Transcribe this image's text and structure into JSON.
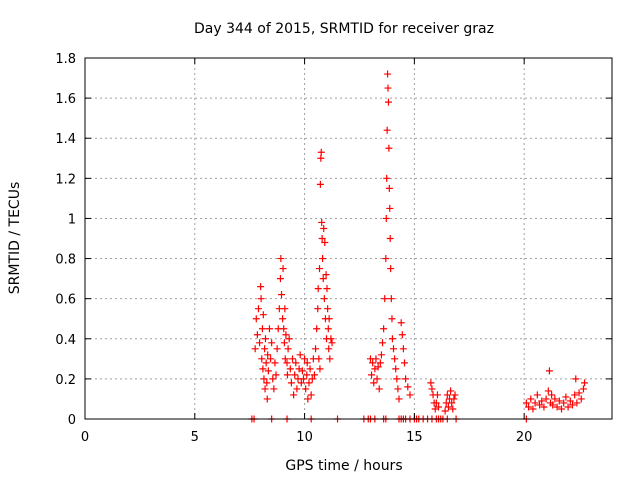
{
  "chart_data": {
    "type": "scatter",
    "title": "Day 344 of 2015, SRMTID for receiver graz",
    "xlabel": "GPS time / hours",
    "ylabel": "SRMTID / TECUs",
    "xlim": [
      0,
      24
    ],
    "ylim": [
      0,
      1.8
    ],
    "xticks": [
      0,
      5,
      10,
      15,
      20
    ],
    "yticks": [
      0,
      0.2,
      0.4,
      0.6,
      0.8,
      1,
      1.2,
      1.4,
      1.6,
      1.8
    ],
    "ytick_labels": [
      "0",
      "0.2",
      "0.4",
      "0.6",
      "0.8",
      "1",
      "1.2",
      "1.4",
      "1.6",
      "1.8"
    ],
    "grid": true,
    "marker": "+",
    "color": "#ff0000",
    "series": [
      {
        "name": "SRMTID",
        "points": [
          [
            7.6,
            0.0
          ],
          [
            7.7,
            0.0
          ],
          [
            8.5,
            0.0
          ],
          [
            9.2,
            0.0
          ],
          [
            10.3,
            0.0
          ],
          [
            11.5,
            0.0
          ],
          [
            12.7,
            0.0
          ],
          [
            12.9,
            0.0
          ],
          [
            13.0,
            0.0
          ],
          [
            13.2,
            0.0
          ],
          [
            13.6,
            0.0
          ],
          [
            13.7,
            0.0
          ],
          [
            14.3,
            0.0
          ],
          [
            14.4,
            0.0
          ],
          [
            14.5,
            0.0
          ],
          [
            14.6,
            0.0
          ],
          [
            14.8,
            0.0
          ],
          [
            15.0,
            0.0
          ],
          [
            15.1,
            0.0
          ],
          [
            15.2,
            0.0
          ],
          [
            15.4,
            0.0
          ],
          [
            15.6,
            0.0
          ],
          [
            15.8,
            0.0
          ],
          [
            16.0,
            0.0
          ],
          [
            16.1,
            0.0
          ],
          [
            16.2,
            0.0
          ],
          [
            16.3,
            0.0
          ],
          [
            16.5,
            0.0
          ],
          [
            16.9,
            0.0
          ],
          [
            20.1,
            0.0
          ],
          [
            7.75,
            0.35
          ],
          [
            7.8,
            0.5
          ],
          [
            7.85,
            0.42
          ],
          [
            7.9,
            0.55
          ],
          [
            7.95,
            0.38
          ],
          [
            8.0,
            0.66
          ],
          [
            8.02,
            0.6
          ],
          [
            8.05,
            0.3
          ],
          [
            8.08,
            0.45
          ],
          [
            8.1,
            0.25
          ],
          [
            8.12,
            0.52
          ],
          [
            8.15,
            0.2
          ],
          [
            8.18,
            0.35
          ],
          [
            8.2,
            0.15
          ],
          [
            8.22,
            0.4
          ],
          [
            8.25,
            0.28
          ],
          [
            8.28,
            0.18
          ],
          [
            8.3,
            0.1
          ],
          [
            8.32,
            0.32
          ],
          [
            8.35,
            0.24
          ],
          [
            8.4,
            0.45
          ],
          [
            8.45,
            0.3
          ],
          [
            8.5,
            0.38
          ],
          [
            8.55,
            0.2
          ],
          [
            8.6,
            0.15
          ],
          [
            8.65,
            0.28
          ],
          [
            8.7,
            0.22
          ],
          [
            8.75,
            0.35
          ],
          [
            8.8,
            0.45
          ],
          [
            8.85,
            0.55
          ],
          [
            8.9,
            0.7
          ],
          [
            8.92,
            0.8
          ],
          [
            8.95,
            0.62
          ],
          [
            9.0,
            0.5
          ],
          [
            9.02,
            0.75
          ],
          [
            9.05,
            0.45
          ],
          [
            9.08,
            0.38
          ],
          [
            9.1,
            0.55
          ],
          [
            9.12,
            0.3
          ],
          [
            9.15,
            0.42
          ],
          [
            9.2,
            0.28
          ],
          [
            9.22,
            0.22
          ],
          [
            9.25,
            0.35
          ],
          [
            9.3,
            0.4
          ],
          [
            9.35,
            0.25
          ],
          [
            9.4,
            0.18
          ],
          [
            9.45,
            0.3
          ],
          [
            9.5,
            0.12
          ],
          [
            9.55,
            0.22
          ],
          [
            9.6,
            0.28
          ],
          [
            9.65,
            0.15
          ],
          [
            9.7,
            0.2
          ],
          [
            9.75,
            0.25
          ],
          [
            9.8,
            0.32
          ],
          [
            9.85,
            0.18
          ],
          [
            9.9,
            0.24
          ],
          [
            9.95,
            0.2
          ],
          [
            10.0,
            0.3
          ],
          [
            10.05,
            0.15
          ],
          [
            10.1,
            0.22
          ],
          [
            10.12,
            0.28
          ],
          [
            10.15,
            0.1
          ],
          [
            10.2,
            0.18
          ],
          [
            10.25,
            0.25
          ],
          [
            10.3,
            0.12
          ],
          [
            10.35,
            0.2
          ],
          [
            10.4,
            0.3
          ],
          [
            10.45,
            0.22
          ],
          [
            10.5,
            0.35
          ],
          [
            10.55,
            0.45
          ],
          [
            10.6,
            0.55
          ],
          [
            10.62,
            0.65
          ],
          [
            10.65,
            0.3
          ],
          [
            10.68,
            0.75
          ],
          [
            10.7,
            0.25
          ],
          [
            10.72,
            1.17
          ],
          [
            10.74,
            1.3
          ],
          [
            10.76,
            1.33
          ],
          [
            10.78,
            0.98
          ],
          [
            10.8,
            0.9
          ],
          [
            10.82,
            0.8
          ],
          [
            10.85,
            0.7
          ],
          [
            10.87,
            0.95
          ],
          [
            10.9,
            0.6
          ],
          [
            10.92,
            0.88
          ],
          [
            10.95,
            0.5
          ],
          [
            10.98,
            0.72
          ],
          [
            11.0,
            0.4
          ],
          [
            11.02,
            0.65
          ],
          [
            11.05,
            0.55
          ],
          [
            11.08,
            0.45
          ],
          [
            11.1,
            0.35
          ],
          [
            11.12,
            0.5
          ],
          [
            11.15,
            0.3
          ],
          [
            11.2,
            0.4
          ],
          [
            11.25,
            0.38
          ],
          [
            13.0,
            0.3
          ],
          [
            13.05,
            0.22
          ],
          [
            13.1,
            0.28
          ],
          [
            13.15,
            0.18
          ],
          [
            13.2,
            0.25
          ],
          [
            13.25,
            0.3
          ],
          [
            13.3,
            0.2
          ],
          [
            13.35,
            0.26
          ],
          [
            13.4,
            0.15
          ],
          [
            13.45,
            0.28
          ],
          [
            13.5,
            0.32
          ],
          [
            13.55,
            0.38
          ],
          [
            13.6,
            0.45
          ],
          [
            13.65,
            0.6
          ],
          [
            13.7,
            0.8
          ],
          [
            13.72,
            1.0
          ],
          [
            13.74,
            1.2
          ],
          [
            13.76,
            1.44
          ],
          [
            13.78,
            1.72
          ],
          [
            13.8,
            1.65
          ],
          [
            13.82,
            1.58
          ],
          [
            13.84,
            1.35
          ],
          [
            13.86,
            1.15
          ],
          [
            13.88,
            1.05
          ],
          [
            13.9,
            0.9
          ],
          [
            13.92,
            0.75
          ],
          [
            13.95,
            0.6
          ],
          [
            13.98,
            0.5
          ],
          [
            14.0,
            0.4
          ],
          [
            14.05,
            0.35
          ],
          [
            14.1,
            0.3
          ],
          [
            14.15,
            0.25
          ],
          [
            14.2,
            0.2
          ],
          [
            14.25,
            0.15
          ],
          [
            14.3,
            0.1
          ],
          [
            14.4,
            0.48
          ],
          [
            14.45,
            0.42
          ],
          [
            14.5,
            0.35
          ],
          [
            14.55,
            0.28
          ],
          [
            14.6,
            0.2
          ],
          [
            14.7,
            0.16
          ],
          [
            14.8,
            0.12
          ],
          [
            15.75,
            0.18
          ],
          [
            15.8,
            0.15
          ],
          [
            15.85,
            0.12
          ],
          [
            15.9,
            0.08
          ],
          [
            15.95,
            0.05
          ],
          [
            16.0,
            0.08
          ],
          [
            16.05,
            0.12
          ],
          [
            16.1,
            0.06
          ],
          [
            16.4,
            0.04
          ],
          [
            16.45,
            0.08
          ],
          [
            16.5,
            0.12
          ],
          [
            16.55,
            0.06
          ],
          [
            16.6,
            0.1
          ],
          [
            16.65,
            0.14
          ],
          [
            16.7,
            0.08
          ],
          [
            16.75,
            0.05
          ],
          [
            16.8,
            0.1
          ],
          [
            16.85,
            0.12
          ],
          [
            20.1,
            0.08
          ],
          [
            20.2,
            0.06
          ],
          [
            20.3,
            0.1
          ],
          [
            20.4,
            0.05
          ],
          [
            20.5,
            0.08
          ],
          [
            20.6,
            0.12
          ],
          [
            20.7,
            0.07
          ],
          [
            20.8,
            0.09
          ],
          [
            20.9,
            0.06
          ],
          [
            21.0,
            0.1
          ],
          [
            21.1,
            0.14
          ],
          [
            21.15,
            0.24
          ],
          [
            21.2,
            0.08
          ],
          [
            21.25,
            0.12
          ],
          [
            21.3,
            0.07
          ],
          [
            21.4,
            0.1
          ],
          [
            21.5,
            0.06
          ],
          [
            21.6,
            0.09
          ],
          [
            21.7,
            0.05
          ],
          [
            21.8,
            0.08
          ],
          [
            21.9,
            0.11
          ],
          [
            22.0,
            0.06
          ],
          [
            22.1,
            0.09
          ],
          [
            22.2,
            0.07
          ],
          [
            22.3,
            0.12
          ],
          [
            22.35,
            0.2
          ],
          [
            22.4,
            0.08
          ],
          [
            22.5,
            0.13
          ],
          [
            22.6,
            0.1
          ],
          [
            22.7,
            0.15
          ],
          [
            22.75,
            0.18
          ]
        ]
      }
    ]
  }
}
